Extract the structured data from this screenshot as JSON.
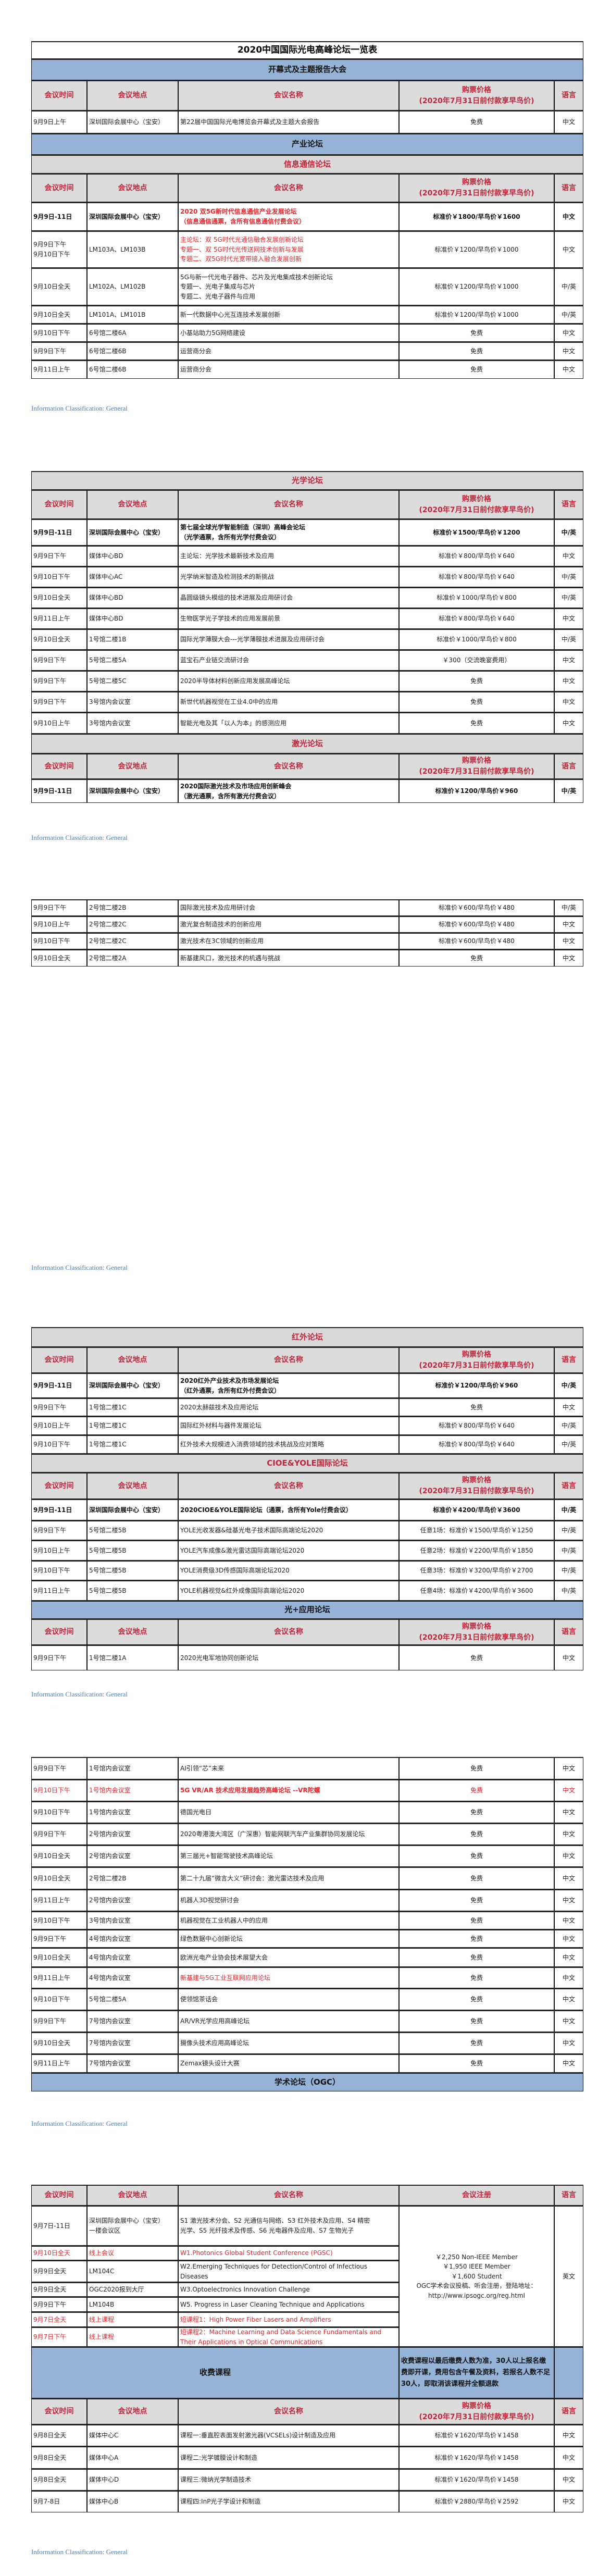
{
  "title": "2020中国国际光电高峰论坛一览表",
  "header": {
    "time": "会议时间",
    "place": "会议地点",
    "name": "会议名称",
    "price": "购票价格",
    "price_note": "(2020年7月31日前付款享早鸟价)",
    "lang": "语言",
    "registration": "会议注册"
  },
  "footer_label": "Information Classification: General",
  "colors": {
    "band_blue": "#95b3d7",
    "band_gray": "#d9d9d9",
    "header_text": "#c0263a",
    "highlight_red": "#e3262b",
    "footer_blue": "#4a7ebb"
  },
  "tables": [
    {
      "rows": [
        {
          "type": "title"
        },
        {
          "type": "band",
          "color": "blue",
          "text": "开幕式及主题报告大会"
        },
        {
          "type": "header"
        },
        {
          "type": "row",
          "time": "9月9日上午",
          "place": "深圳国际会展中心（宝安）",
          "name": "第22届中国国际光电博览会开幕式及主题大会报告",
          "price": "免费",
          "lang": "中文"
        },
        {
          "type": "band",
          "color": "blue",
          "text": "产业论坛"
        },
        {
          "type": "band",
          "color": "gray",
          "text": "信息通信论坛"
        },
        {
          "type": "header"
        },
        {
          "type": "row",
          "style": "bold_redname",
          "time": "9月9日-11日",
          "place": "深圳国际会展中心（宝安）",
          "name": [
            "2020 双5G新时代信息通信产业发展论坛",
            "（信息通信通票，含所有信息通信付费会议）"
          ],
          "price": "标准价￥1800/早鸟价￥1600",
          "lang": "中文"
        },
        {
          "type": "row",
          "style": "redname",
          "time": [
            "9月9日下午",
            "9月10日下午"
          ],
          "place": "LM103A、LM103B",
          "name": [
            "主论坛：双 5G时代光通信融合发展创新论坛",
            "专题一、双 5G时代光传送网技术创新与发展",
            "专题二、双5G时代光宽带接入融合发展创新"
          ],
          "price": "标准价￥1200/早鸟价￥1000",
          "lang": "中文"
        },
        {
          "type": "row",
          "time": "9月10日全天",
          "place": "LM102A、LM102B",
          "name": [
            "5G与新一代光电子器件、芯片及光电集成技术创新论坛",
            "专题一、光电子集成与芯片",
            "专题二、光电子器件与应用"
          ],
          "price": "标准价￥1200/早鸟价￥1000",
          "lang": "中/英"
        },
        {
          "type": "row",
          "time": "9月10日全天",
          "place": "LM101A、LM101B",
          "name": "新一代数据中心光互连技术发展创新",
          "price": "标准价￥1200/早鸟价￥1000",
          "lang": "中/英"
        },
        {
          "type": "row",
          "time": "9月10日下午",
          "place": "6号馆二楼6A",
          "name": "小基站助力5G网络建设",
          "price": "免费",
          "lang": "中文"
        },
        {
          "type": "row",
          "time": "9月9日下午",
          "place": "6号馆二楼6B",
          "name": "运营商分会",
          "price": "免费",
          "lang": "中文"
        },
        {
          "type": "row",
          "time": "9月11日上午",
          "place": "6号馆二楼6B",
          "name": "运营商分会",
          "price": "免费",
          "lang": "中文"
        }
      ]
    },
    {
      "rows": [
        {
          "type": "band",
          "color": "gray",
          "text": "光学论坛"
        },
        {
          "type": "header"
        },
        {
          "type": "row",
          "style": "bold",
          "time": "9月9日-11日",
          "place": "深圳国际会展中心（宝安）",
          "name": [
            "第七届全球光学智能制造（深圳）高峰会论坛",
            "（光学通票，含所有光学付费会议）"
          ],
          "price": "标准价￥1500/早鸟价￥1200",
          "lang": "中/英"
        },
        {
          "type": "row",
          "time": "9月9日下午",
          "place": "媒体中心BD",
          "name": "主论坛：光学技术最新技术及应用",
          "price": "标准价￥800/早鸟价￥640",
          "lang": "中文"
        },
        {
          "type": "row",
          "time": "9月10日下午",
          "place": "媒体中心AC",
          "name": "光学纳米智造及检测技术的新挑战",
          "price": "标准价￥800/早鸟价￥640",
          "lang": "中/英"
        },
        {
          "type": "row",
          "time": "9月10日全天",
          "place": "媒体中心BD",
          "name": "晶圆级镜头模组的技术进展及应用研讨会",
          "price": "标准价￥1000/早鸟价￥800",
          "lang": "中/英"
        },
        {
          "type": "row",
          "time": "9月11日上午",
          "place": "媒体中心BD",
          "name": "生物医学光子学技术的应用发展前景",
          "price": "标准价￥800/早鸟价￥640",
          "lang": "中文"
        },
        {
          "type": "row",
          "time": "9月10日全天",
          "place": "1号馆二楼1B",
          "name": "国际光学薄膜大会---光学薄膜技术进展及应用研讨会",
          "price": "标准价￥1000/早鸟价￥800",
          "lang": "中/英"
        },
        {
          "type": "row",
          "time": "9月9日下午",
          "place": "5号馆二楼5A",
          "name": "蓝宝石产业链交流研讨会",
          "price": "￥300（交流晚宴费用）",
          "lang": "中文"
        },
        {
          "type": "row",
          "time": "9月9日下午",
          "place": "5号馆二楼5C",
          "name": "2020半导体材料创新应用发展高峰论坛",
          "price": "免费",
          "lang": "中文"
        },
        {
          "type": "row",
          "time": "9月9日下午",
          "place": "3号馆内会议室",
          "name": "新世代机器视觉在工业4.0中的应用",
          "price": "免费",
          "lang": "中文"
        },
        {
          "type": "row",
          "time": "9月10日上午",
          "place": "3号馆内会议室",
          "name": "智能光电及其「以人为本」的感测应用",
          "price": "免费",
          "lang": "中文"
        },
        {
          "type": "band",
          "color": "gray",
          "text": "激光论坛"
        },
        {
          "type": "header"
        },
        {
          "type": "row",
          "style": "bold",
          "time": "9月9日-11日",
          "place": "深圳国际会展中心（宝安）",
          "name": [
            "2020国际激光技术及市场应用创新峰会",
            "（激光通票，含所有激光付费会议）"
          ],
          "price": "标准价￥1200/早鸟价￥960",
          "lang": "中/英"
        }
      ]
    },
    {
      "rows": [
        {
          "type": "row",
          "time": "9月9日下午",
          "place": "2号馆二楼2B",
          "name": "国际激光技术及应用研讨会",
          "price": "标准价￥600/早鸟价￥480",
          "lang": "中/英"
        },
        {
          "type": "row",
          "time": "9月10日上午",
          "place": "2号馆二楼2C",
          "name": "激光复合制造技术的创新应用",
          "price": "标准价￥600/早鸟价￥480",
          "lang": "中文"
        },
        {
          "type": "row",
          "time": "9月10日下午",
          "place": "2号馆二楼2C",
          "name": "激光技术在3C领域的创新应用",
          "price": "标准价￥600/早鸟价￥480",
          "lang": "中文"
        },
        {
          "type": "row",
          "time": "9月10日全天",
          "place": "2号馆二楼2A",
          "name": "新基建风口，激光技术的机遇与挑战",
          "price": "免费",
          "lang": "中文"
        }
      ]
    },
    {
      "rows": [
        {
          "type": "band",
          "color": "gray",
          "text": "红外论坛"
        },
        {
          "type": "header"
        },
        {
          "type": "row",
          "style": "bold",
          "time": "9月9日-11日",
          "place": "深圳国际会展中心（宝安）",
          "name": [
            "2020红外产业技术及市场发展论坛",
            "（红外通票，含所有红外付费会议）"
          ],
          "price": "标准价￥1200/早鸟价￥960",
          "lang": "中/英"
        },
        {
          "type": "row",
          "time": "9月9日下午",
          "place": "1号馆二楼1C",
          "name": "2020太赫兹技术及应用论坛",
          "price": "免费",
          "lang": "中文"
        },
        {
          "type": "row",
          "time": "9月10日上午",
          "place": "1号馆二楼1C",
          "name": "国际红外材料与器件发展论坛",
          "price": "标准价￥800/早鸟价￥640",
          "lang": "中/英"
        },
        {
          "type": "row",
          "time": "9月10日下午",
          "place": "1号馆二楼1C",
          "name": "红外技术大规模进入消费领域的技术挑战及应对策略",
          "price": "标准价￥800/早鸟价￥640",
          "lang": "中/英"
        },
        {
          "type": "band",
          "color": "gray",
          "text": "CIOE&YOLE国际论坛"
        },
        {
          "type": "header"
        },
        {
          "type": "row",
          "style": "bold",
          "time": "9月9日-11日",
          "place": "深圳国际会展中心（宝安）",
          "name": "2020CIOE&YOLE国际论坛（通票，含所有Yole付费会议）",
          "price": "标准价￥4200/早鸟价￥3600",
          "lang": "中/英"
        },
        {
          "type": "row",
          "time": "9月9日下午",
          "place": "5号馆二楼5B",
          "name": "YOLE光收发器&硅基光电子技术国际高端论坛2020",
          "price": "任意1场：标准价￥1500/早鸟价￥1250",
          "lang": "中/英"
        },
        {
          "type": "row",
          "time": "9月10日上午",
          "place": "5号馆二楼5B",
          "name": "YOLE汽车成像&激光雷达国际高端论坛2020",
          "price": "任意2场：标准价￥2200/早鸟价￥1850",
          "lang": "中/英"
        },
        {
          "type": "row",
          "time": "9月10日下午",
          "place": "5号馆二楼5B",
          "name": "YOLE消费级3D传感国际高端论坛2020",
          "price": "任意3场：标准价￥3200/早鸟价￥2700",
          "lang": "中/英"
        },
        {
          "type": "row",
          "time": "9月11日上午",
          "place": "5号馆二楼5B",
          "name": "YOLE机器视觉&红外成像国际高端论坛2020",
          "price": "任意4场：标准价￥4200/早鸟价￥3600",
          "lang": "中/英"
        },
        {
          "type": "band",
          "color": "blue",
          "text": "光+应用论坛"
        },
        {
          "type": "header"
        },
        {
          "type": "row",
          "time": "9月9日下午",
          "place": "1号馆二楼1A",
          "name": "2020光电军地协同创新论坛",
          "price": "免费",
          "lang": "中文"
        }
      ]
    },
    {
      "rows": [
        {
          "type": "row",
          "time": "9月9日下午",
          "place": "1号馆内会议室",
          "name": "AI引领“芯”未来",
          "price": "免费",
          "lang": "中文"
        },
        {
          "type": "row",
          "style": "red_bold",
          "time": "9月10日下午",
          "place": "1号馆内会议室",
          "name": "5G VR/AR 技术应用发展趋势高峰论坛  --VR陀螺",
          "price": "免费",
          "lang": "中文"
        },
        {
          "type": "row",
          "time": "9月10日下午",
          "place": "1号馆内会议室",
          "name": "德国光电日",
          "price": "免费",
          "lang": "中文"
        },
        {
          "type": "row",
          "time": "9月9日下午",
          "place": "2号馆内会议室",
          "name": "2020粤港澳大湾区（广深惠）智能网联汽车产业集群协同发展论坛",
          "price": "免费",
          "lang": "中文"
        },
        {
          "type": "row",
          "time": "9月10日全天",
          "place": "2号馆内会议室",
          "name": "第三届光+智能驾驶技术高峰论坛",
          "price": "免费",
          "lang": "中文"
        },
        {
          "type": "row",
          "time": "9月10日全天",
          "place": "2号馆二楼2B",
          "name": "第二十九届“微言大义”研讨会：激光雷达技术及应用",
          "price": "免费",
          "lang": "中文"
        },
        {
          "type": "row",
          "time": "9月11日上午",
          "place": "2号馆内会议室",
          "name": "机器人3D视觉研讨会",
          "price": "免费",
          "lang": "中文"
        },
        {
          "type": "row",
          "time": "9月10日下午",
          "place": "3号馆内会议室",
          "name": "机器视觉在工业机器人中的应用",
          "price": "免费",
          "lang": "中文"
        },
        {
          "type": "row",
          "time": "9月9日下午",
          "place": "4号馆内会议室",
          "name": "绿色数据中心创新论坛",
          "price": "免费",
          "lang": "中文"
        },
        {
          "type": "row",
          "time": "9月10日全天",
          "place": "4号馆内会议室",
          "name": "欧洲光电产业协会技术展望大会",
          "price": "免费",
          "lang": "中文"
        },
        {
          "type": "row",
          "style": "redname",
          "time": "9月11日上午",
          "place": "4号馆内会议室",
          "name": "新基建与5G工业互联网应用论坛",
          "price": "免费",
          "lang": "中文"
        },
        {
          "type": "row",
          "time": "9月10日下午",
          "place": "5号馆二楼5A",
          "name": "使领馆茶话会",
          "price": "免费",
          "lang": "中文"
        },
        {
          "type": "row",
          "time": "9月9日下午",
          "place": "7号馆内会议室",
          "name": "AR/VR光学应用高峰论坛",
          "price": "免费",
          "lang": "中文"
        },
        {
          "type": "row",
          "time": "9月10日全天",
          "place": "7号馆内会议室",
          "name": "摄像头技术应用高峰论坛",
          "price": "免费",
          "lang": "中文"
        },
        {
          "type": "row",
          "time": "9月11日上午",
          "place": "7号馆内会议室",
          "name": "Zemax镜头设计大赛",
          "price": "免费",
          "lang": "中文"
        },
        {
          "type": "band",
          "color": "blue",
          "text": "学术论坛（OGC）"
        }
      ]
    },
    {
      "merged": {
        "price": [
          "￥2,250 Non-IEEE Member",
          "￥1,950 IEEE Member",
          "￥1,600 Student",
          "OGC学术会议投稿、听会注册，登陆地址：",
          "http://www.ipsogc.org/reg.html"
        ],
        "lang": "英文"
      },
      "rows": [
        {
          "type": "header",
          "variant": "registration"
        },
        {
          "type": "row",
          "time": "9月7日-11日",
          "place": [
            "深圳国际会展中心（宝安）",
            "一楼会议区"
          ],
          "name": [
            "S1 激光技术分会、S2 光通信与网络、S3 红外技术及应用、S4 精密",
            "光学、S5 光纤技术及传感、S6 光电器件及应用、S7 生物光子"
          ]
        },
        {
          "type": "row",
          "style": "red",
          "time": "9月10日全天",
          "place": "线上会议",
          "name": "W1.Photonics Global Student Conference (PGSC)"
        },
        {
          "type": "row",
          "time": "9月9日全天",
          "place": "LM104C",
          "name": [
            "W2.Emerging Techniques for Detection/Control of Infectious",
            "Diseases"
          ]
        },
        {
          "type": "row",
          "time": "9月9日全天",
          "place": "OGC2020报到大厅",
          "name": "W3.Optoelectronics Innovation Challenge"
        },
        {
          "type": "row",
          "time": "9月9日下午",
          "place": "LM104B",
          "name": "W5. Progress in Laser Cleaning Technique and Applications"
        },
        {
          "type": "row",
          "style": "red",
          "time": "9月7日全天",
          "place": "线上课程",
          "name": "短课程1：High Power Fiber Lasers and Amplifiers"
        },
        {
          "type": "row",
          "style": "red",
          "time": "9月7日下午",
          "place": "线上课程",
          "name": [
            "短课程2：Machine Learning and Data Science Fundamentals and",
            "Their Applications in Optical Communications"
          ]
        },
        {
          "type": "band_note",
          "text": "收费课程",
          "note": "收费课程以最后缴费人数为准，30人以上报名缴费即开课，费用包含午餐及资料，若报名人数不足30人，即取消该课程并全额退款"
        },
        {
          "type": "header"
        },
        {
          "type": "row",
          "time": "9月8日全天",
          "place": "媒体中心C",
          "name": "课程一:垂直腔表面发射激光器(VCSELs)设计制造及应用",
          "price": "标准价￥1620/早鸟价￥1458",
          "lang": "中文"
        },
        {
          "type": "row",
          "time": "9月8日全天",
          "place": "媒体中心A",
          "name": "课程二:光学镀膜设计和制造",
          "price": "标准价￥1620/早鸟价￥1458",
          "lang": "中文"
        },
        {
          "type": "row",
          "time": "9月8日全天",
          "place": "媒体中心D",
          "name": "课程三:微纳光学制造技术",
          "price": "标准价￥1620/早鸟价￥1458",
          "lang": "中文"
        },
        {
          "type": "row",
          "time": "9月7-8日",
          "place": "媒体中心B",
          "name": "课程四:InP光子学设计和制造",
          "price": "标准价￥2880/早鸟价￥2592",
          "lang": "中文"
        }
      ]
    }
  ]
}
